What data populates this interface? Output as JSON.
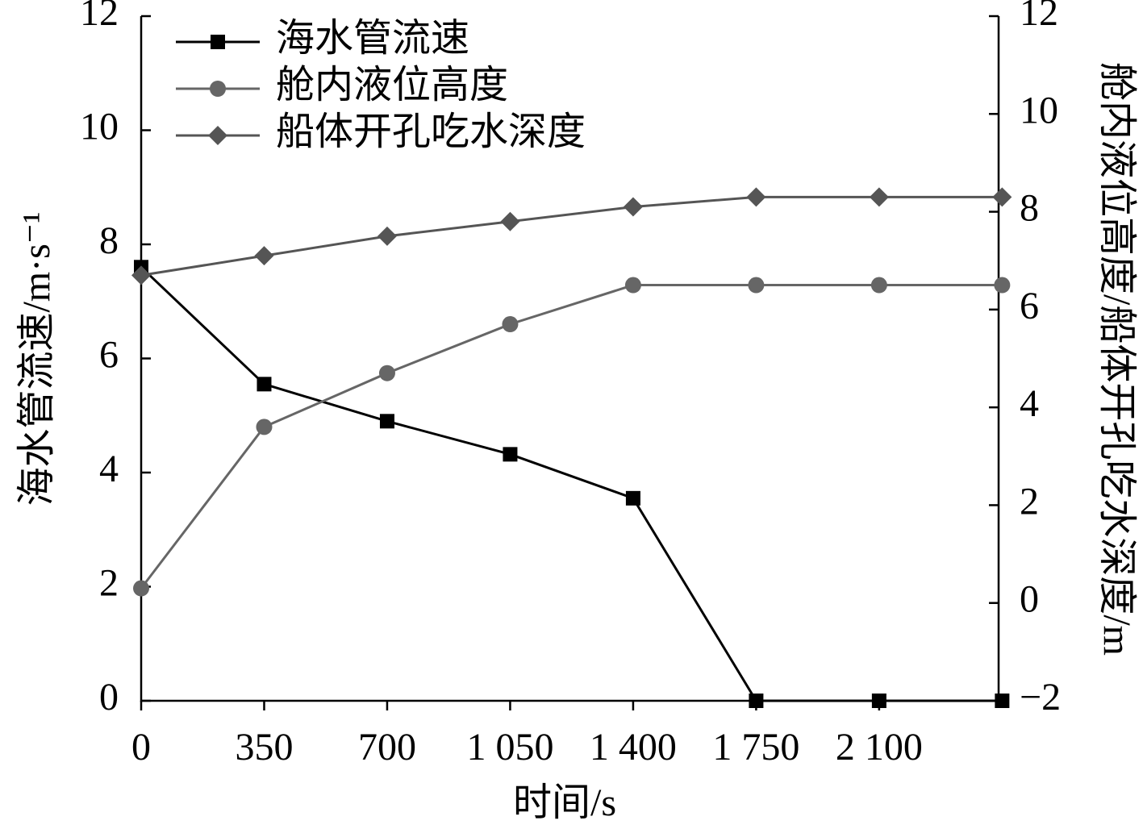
{
  "chart_data": {
    "type": "line",
    "x_label": "时间/s",
    "y_label": "海水管流速/m·s⁻¹",
    "y2_label": "舱内液位高度/船体开孔吃水深度/m",
    "x": [
      0,
      350,
      700,
      1050,
      1400,
      1750,
      2100,
      2450
    ],
    "series": [
      {
        "name": "海水管流速",
        "color": "#000000",
        "marker": "square",
        "values": [
          7.6,
          5.55,
          4.9,
          4.32,
          3.55,
          0,
          0,
          0
        ]
      },
      {
        "name": "舱内液位高度",
        "color": "#666666",
        "marker": "circle",
        "axis": "y2",
        "values": [
          0.3,
          3.6,
          4.7,
          5.7,
          6.5,
          6.5,
          6.5,
          6.5
        ]
      },
      {
        "name": "船体开孔吃水深度",
        "color": "#555555",
        "marker": "diamond",
        "axis": "y2",
        "values": [
          6.7,
          7.1,
          7.5,
          7.8,
          8.1,
          8.3,
          8.3,
          8.3
        ]
      }
    ],
    "xlim": [
      0,
      2440
    ],
    "xticks": [
      0,
      350,
      700,
      {
        "value": 1050,
        "label": "1 050"
      },
      {
        "value": 1400,
        "label": "1 400"
      },
      {
        "value": 1750,
        "label": "1 750"
      },
      {
        "value": 2100,
        "label": "2 100"
      }
    ],
    "ylim": [
      0,
      12
    ],
    "yticks": [
      0,
      2,
      4,
      6,
      8,
      10,
      12
    ],
    "y2lim": [
      -2,
      12
    ],
    "y2ticks": [
      {
        "value": -2,
        "label": "−2"
      },
      0,
      2,
      4,
      6,
      8,
      10,
      12
    ],
    "legend": "top-left",
    "grid": false
  }
}
